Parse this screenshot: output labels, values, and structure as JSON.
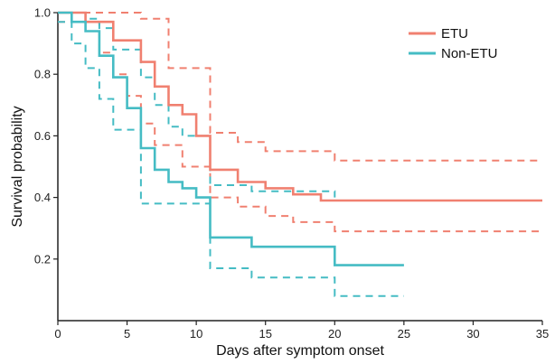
{
  "chart_data": {
    "type": "line",
    "title": "",
    "xlabel": "Days after symptom onset",
    "ylabel": "Survival probability",
    "xlim": [
      0,
      35
    ],
    "ylim": [
      0,
      1.0
    ],
    "x_ticks": [
      0,
      5,
      10,
      15,
      20,
      25,
      30,
      35
    ],
    "y_ticks": [
      0.2,
      0.4,
      0.6,
      0.8,
      1.0
    ],
    "x_tick_labels": [
      "0",
      "5",
      "10",
      "15",
      "20",
      "25",
      "30",
      "35"
    ],
    "y_tick_labels": [
      "0.2",
      "0.4",
      "0.6",
      "0.8",
      "1.0"
    ],
    "grid": false,
    "legend_position": "top-right",
    "series": [
      {
        "name": "ETU",
        "color": "#f08070",
        "step": true,
        "estimate": {
          "x": [
            0,
            1,
            2,
            4,
            6,
            7,
            8,
            9,
            10,
            11,
            13,
            15,
            17,
            19,
            35
          ],
          "y": [
            1.0,
            1.0,
            0.97,
            0.91,
            0.84,
            0.76,
            0.7,
            0.67,
            0.6,
            0.49,
            0.45,
            0.43,
            0.41,
            0.39,
            0.39
          ]
        },
        "upper": {
          "x": [
            0,
            6,
            8,
            11,
            13,
            15,
            20,
            35
          ],
          "y": [
            1.0,
            0.98,
            0.82,
            0.61,
            0.58,
            0.55,
            0.52,
            0.52
          ]
        },
        "lower": {
          "x": [
            0,
            3,
            4,
            5,
            6,
            7,
            9,
            11,
            13,
            15,
            17,
            20,
            35
          ],
          "y": [
            0.97,
            0.87,
            0.8,
            0.73,
            0.64,
            0.57,
            0.5,
            0.4,
            0.37,
            0.34,
            0.32,
            0.29,
            0.29
          ]
        }
      },
      {
        "name": "Non-ETU",
        "color": "#45bcc4",
        "step": true,
        "estimate": {
          "x": [
            0,
            1,
            2,
            3,
            4,
            5,
            6,
            7,
            8,
            9,
            10,
            11,
            14,
            20,
            25
          ],
          "y": [
            1.0,
            0.97,
            0.94,
            0.86,
            0.79,
            0.69,
            0.56,
            0.49,
            0.45,
            0.43,
            0.4,
            0.27,
            0.24,
            0.18,
            0.18
          ]
        },
        "upper": {
          "x": [
            0,
            2,
            3,
            4,
            6,
            7,
            8,
            9,
            11,
            14,
            20
          ],
          "y": [
            1.0,
            0.98,
            0.95,
            0.88,
            0.79,
            0.7,
            0.63,
            0.6,
            0.44,
            0.42,
            0.4
          ]
        },
        "lower": {
          "x": [
            0,
            1,
            2,
            3,
            4,
            6,
            11,
            14,
            20,
            25
          ],
          "y": [
            0.97,
            0.9,
            0.82,
            0.72,
            0.62,
            0.38,
            0.17,
            0.14,
            0.08,
            0.08
          ]
        }
      }
    ]
  }
}
